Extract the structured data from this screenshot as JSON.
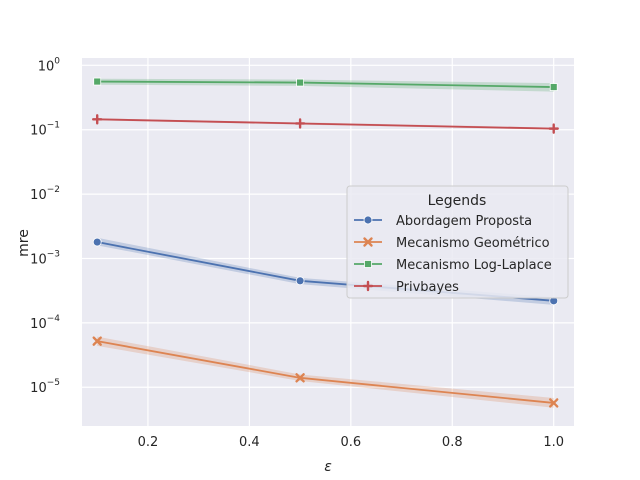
{
  "chart_data": {
    "type": "line",
    "xlabel": "ε",
    "ylabel": "mre",
    "yscale": "log",
    "xlim": [
      0.07,
      1.04
    ],
    "ylim": [
      2.5e-06,
      1.3
    ],
    "grid": true,
    "x": [
      0.1,
      0.5,
      1.0
    ],
    "x_ticks": [
      0.2,
      0.4,
      0.6,
      0.8,
      1.0
    ],
    "x_tick_labels": [
      "0.2",
      "0.4",
      "0.6",
      "0.8",
      "1.0"
    ],
    "y_ticks": [
      1e-05,
      0.0001,
      0.001,
      0.01,
      0.1,
      1
    ],
    "y_tick_labels": [
      {
        "base": "10",
        "exp": "−5"
      },
      {
        "base": "10",
        "exp": "−4"
      },
      {
        "base": "10",
        "exp": "−3"
      },
      {
        "base": "10",
        "exp": "−2"
      },
      {
        "base": "10",
        "exp": "−1"
      },
      {
        "base": "10",
        "exp": "0"
      }
    ],
    "legend": {
      "title": "Legends",
      "placement": "center-right"
    },
    "series": [
      {
        "name": "Abordagem Proposta",
        "color": "#4c72b0",
        "marker": "circle",
        "values": [
          0.0018,
          0.00045,
          0.00022
        ],
        "ci_low": [
          0.0016,
          0.0004,
          0.00019
        ],
        "ci_high": [
          0.0021,
          0.0005,
          0.00025
        ]
      },
      {
        "name": "Mecanismo Geométrico",
        "color": "#dd8452",
        "marker": "x",
        "values": [
          5.2e-05,
          1.4e-05,
          5.7e-06
        ],
        "ci_low": [
          4.4e-05,
          1.25e-05,
          4.8e-06
        ],
        "ci_high": [
          6.1e-05,
          1.58e-05,
          6.8e-06
        ]
      },
      {
        "name": "Mecanismo Log-Laplace",
        "color": "#55a868",
        "marker": "square",
        "values": [
          0.56,
          0.54,
          0.46
        ],
        "ci_low": [
          0.5,
          0.48,
          0.39
        ],
        "ci_high": [
          0.62,
          0.6,
          0.53
        ]
      },
      {
        "name": "Privbayes",
        "color": "#c44e52",
        "marker": "plus",
        "values": [
          0.145,
          0.125,
          0.104
        ],
        "ci_low": [
          0.14,
          0.12,
          0.1
        ],
        "ci_high": [
          0.15,
          0.13,
          0.108
        ]
      }
    ]
  }
}
